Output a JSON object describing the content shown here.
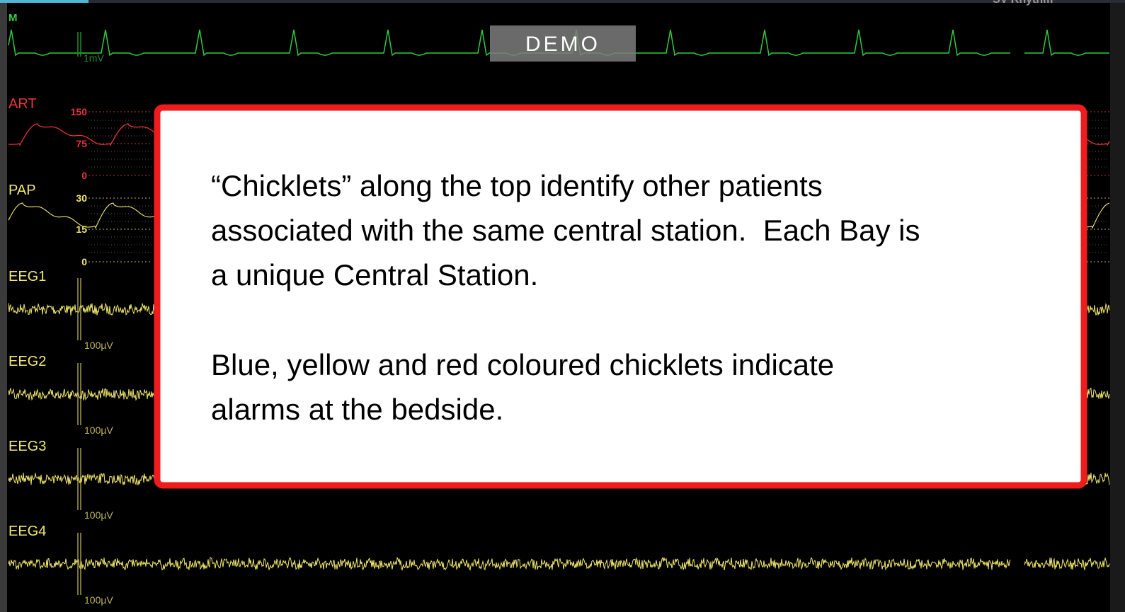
{
  "top_bar": {
    "lead": "M",
    "status": "SV Rhythm"
  },
  "ecg": {
    "scale": "1mV"
  },
  "demo": "DEMO",
  "art": {
    "label": "ART",
    "scale": [
      "150",
      "75",
      "0"
    ]
  },
  "pap": {
    "label": "PAP",
    "scale": [
      "30",
      "15",
      "0"
    ]
  },
  "eeg": [
    {
      "label": "EEG1",
      "scale": "100µV"
    },
    {
      "label": "EEG2",
      "scale": "100µV"
    },
    {
      "label": "EEG3",
      "scale": "100µV"
    },
    {
      "label": "EEG4",
      "scale": "100µV"
    }
  ],
  "callout": {
    "paragraphs": [
      [
        "“Chicklets” along the top identify other patients",
        "associated with the same central station.  Each Bay is",
        "a unique Central Station."
      ],
      [
        "Blue, yellow and red coloured chicklets indicate",
        "alarms at the bedside."
      ]
    ]
  }
}
